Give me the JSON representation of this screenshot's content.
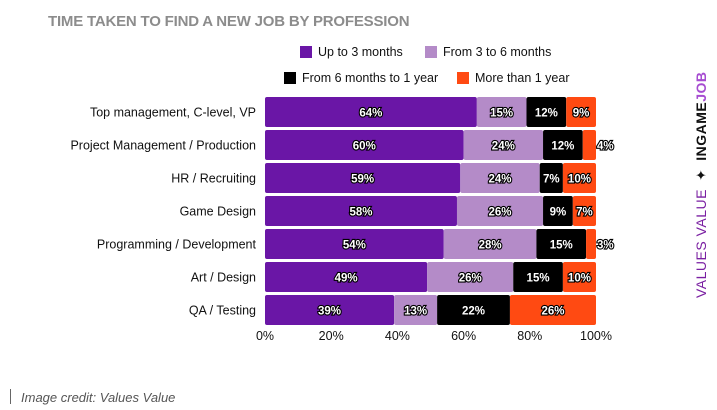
{
  "title": "TIME TAKEN TO FIND A NEW JOB BY PROFESSION",
  "credit": "Image credit: Values Value",
  "brand": {
    "left": "VALUES VALUE",
    "separator": "✦",
    "name_a": "INGAME",
    "name_b": "JOB"
  },
  "chart_data": {
    "type": "bar",
    "orientation": "horizontal",
    "stacked": true,
    "categories": [
      "Top management, C-level, VP",
      "Project Management / Production",
      "HR / Recruiting",
      "Game Design",
      "Programming / Development",
      "Art / Design",
      "QA / Testing"
    ],
    "series": [
      {
        "name": "Up to 3 months",
        "color": "#6a16a6",
        "values": [
          64,
          60,
          59,
          58,
          54,
          49,
          39
        ]
      },
      {
        "name": "From 3 to 6 months",
        "color": "#b48bc8",
        "values": [
          15,
          24,
          24,
          26,
          28,
          26,
          13
        ]
      },
      {
        "name": "From 6 months to 1 year",
        "color": "#000000",
        "values": [
          12,
          12,
          7,
          9,
          15,
          15,
          22
        ]
      },
      {
        "name": "More than 1 year",
        "color": "#ff4a12",
        "values": [
          9,
          4,
          10,
          7,
          3,
          10,
          26
        ]
      }
    ],
    "value_labels": [
      [
        "64%",
        "60%",
        "59%",
        "58%",
        "54%",
        "49%",
        "39%"
      ],
      [
        "15%",
        "24%",
        "24%",
        "26%",
        "28%",
        "26%",
        "13%"
      ],
      [
        "12%",
        "12%",
        "7%",
        "9%",
        "15%",
        "15%",
        "22%"
      ],
      [
        "9%",
        "4%",
        "10%",
        "7%",
        "3%",
        "10%",
        "26%"
      ]
    ],
    "x_ticks": [
      "0%",
      "20%",
      "40%",
      "60%",
      "80%",
      "100%"
    ],
    "xlim": [
      0,
      100
    ],
    "grid": false,
    "legend_position": "top-right"
  }
}
